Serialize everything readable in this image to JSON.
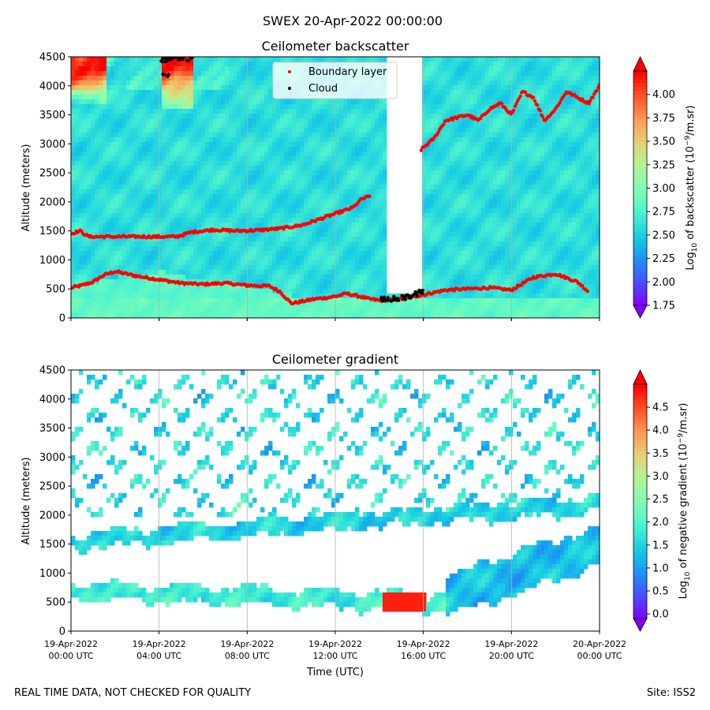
{
  "suptitle": "SWEX 20-Apr-2022 00:00:00",
  "footer_left": "REAL TIME DATA, NOT CHECKED FOR QUALITY",
  "footer_right": "Site: ISS2",
  "xlabel": "Time (UTC)",
  "time_ticks": [
    {
      "line1": "19-Apr-2022",
      "line2": "00:00 UTC",
      "hour": 0
    },
    {
      "line1": "19-Apr-2022",
      "line2": "04:00 UTC",
      "hour": 4
    },
    {
      "line1": "19-Apr-2022",
      "line2": "08:00 UTC",
      "hour": 8
    },
    {
      "line1": "19-Apr-2022",
      "line2": "12:00 UTC",
      "hour": 12
    },
    {
      "line1": "19-Apr-2022",
      "line2": "16:00 UTC",
      "hour": 16
    },
    {
      "line1": "19-Apr-2022",
      "line2": "20:00 UTC",
      "hour": 20
    },
    {
      "line1": "20-Apr-2022",
      "line2": "00:00 UTC",
      "hour": 24
    }
  ],
  "colors": {
    "boundary_layer": "#ff0000",
    "cloud": "#000000",
    "colormap": [
      "#7f00ff",
      "#4b4efc",
      "#1996f3",
      "#19cfe2",
      "#4df3ce",
      "#7ffeb3",
      "#b2f396",
      "#e6cf74",
      "#ff964f",
      "#ff4e27",
      "#ff0000"
    ]
  },
  "chart_data": [
    {
      "type": "heatmap",
      "title": "Ceilometer backscatter",
      "xlabel": "",
      "ylabel": "Altitude (meters)",
      "xlim_hours": [
        0,
        24
      ],
      "ylim": [
        0,
        4500
      ],
      "yticks": [
        0,
        500,
        1000,
        1500,
        2000,
        2500,
        3000,
        3500,
        4000,
        4500
      ],
      "colorbar": {
        "label": "Log10 of backscatter (10^-9/m.sr)",
        "label_prefix": "Log",
        "label_sub": "10",
        "label_mid": " of backscatter (10",
        "label_sup": "−9",
        "label_suffix": "/m.sr)",
        "range": [
          1.75,
          4.25
        ],
        "ticks": [
          "1.75",
          "2.00",
          "2.25",
          "2.50",
          "2.75",
          "3.00",
          "3.25",
          "3.50",
          "3.75",
          "4.00"
        ]
      },
      "legend": {
        "placement": "top-center",
        "entries": [
          "Boundary layer",
          "Cloud"
        ]
      },
      "background_level": 2.6,
      "near_surface_level": 2.85,
      "aerosol_layer": {
        "hours": [
          0,
          13
        ],
        "altitudes": [
          520,
          700,
          800,
          620,
          560,
          380,
          300,
          350
        ],
        "level": 2.8
      },
      "high_signal_periods": [
        {
          "hours": [
            0,
            1.5
          ],
          "from_alt": 3700,
          "level": 4.1
        },
        {
          "hours": [
            4,
            5.5
          ],
          "from_alt": 3600,
          "level": 4.1
        }
      ],
      "white_cloud_column": {
        "hours": [
          14.2,
          15.9
        ],
        "from_alt": 400,
        "to_alt": 4500
      },
      "boundary_layer_series": [
        {
          "name": "lower",
          "x": [
            0,
            0.5,
            1,
            1.5,
            2,
            2.5,
            3,
            3.5,
            4,
            5,
            6,
            7,
            8,
            9,
            9.5,
            10,
            11,
            12,
            12.5,
            13,
            13.5,
            14,
            15,
            16,
            17,
            18,
            19,
            20,
            21,
            22,
            23,
            23.5
          ],
          "y": [
            520,
            560,
            620,
            740,
            800,
            760,
            720,
            690,
            660,
            600,
            580,
            600,
            560,
            550,
            450,
            250,
            320,
            370,
            420,
            380,
            330,
            300,
            320,
            400,
            480,
            500,
            520,
            480,
            700,
            760,
            620,
            450
          ]
        },
        {
          "name": "mid",
          "x": [
            0,
            0.4,
            0.8,
            4.8,
            5.5,
            6.5,
            7.5,
            8.5,
            9.5,
            10.5,
            12.8,
            13.2,
            13.6
          ],
          "y": [
            1450,
            1500,
            1400,
            1400,
            1480,
            1520,
            1500,
            1510,
            1540,
            1600,
            1900,
            2050,
            2100
          ]
        },
        {
          "name": "upper",
          "x": [
            15.9,
            16.5,
            17,
            17.5,
            18,
            18.5,
            19,
            19.5,
            20,
            20.5,
            21,
            21.5,
            22,
            22.5,
            23,
            23.5,
            24
          ],
          "y": [
            2900,
            3100,
            3400,
            3450,
            3500,
            3400,
            3600,
            3700,
            3500,
            3900,
            3800,
            3400,
            3600,
            3900,
            3800,
            3700,
            4000
          ]
        }
      ],
      "cloud_series": {
        "x": [
          14.2,
          14.5,
          14.8,
          15.1,
          15.4,
          15.7,
          15.9,
          4.2,
          4.5,
          4.8,
          5.1,
          5.4,
          4.3
        ],
        "y": [
          320,
          310,
          330,
          350,
          380,
          420,
          450,
          4450,
          4480,
          4460,
          4480,
          4470,
          4200
        ]
      }
    },
    {
      "type": "heatmap",
      "title": "Ceilometer gradient",
      "xlabel": "Time (UTC)",
      "ylabel": "Altitude (meters)",
      "xlim_hours": [
        0,
        24
      ],
      "ylim": [
        0,
        4500
      ],
      "yticks": [
        0,
        500,
        1000,
        1500,
        2000,
        2500,
        3000,
        3500,
        4000,
        4500
      ],
      "colorbar": {
        "label": "Log10 of negative gradient (10^-9/m.sr)",
        "label_prefix": "Log",
        "label_sub": "10",
        "label_mid": " of negative gradient (10",
        "label_sup": "−9",
        "label_suffix": "/m.sr)",
        "range": [
          -0.1,
          5.0
        ],
        "ticks": [
          "0.0",
          "0.5",
          "1.0",
          "1.5",
          "2.0",
          "2.5",
          "3.0",
          "3.5",
          "4.0",
          "4.5"
        ]
      },
      "bands": [
        {
          "hours": [
            0,
            24
          ],
          "alt_start": 1550,
          "alt_end": 2200,
          "thickness": 260,
          "level": 1.5
        },
        {
          "hours": [
            0,
            17
          ],
          "alt_start": 700,
          "alt_end": 500,
          "thickness": 280,
          "level": 1.8
        },
        {
          "hours": [
            17,
            24
          ],
          "alt_start": 600,
          "alt_end": 1500,
          "thickness": 700,
          "level": 1.3
        }
      ],
      "hot_spot": {
        "hours": [
          14,
          16
        ],
        "alt": [
          300,
          650
        ],
        "level": 4.8
      },
      "sparse_patch_level": 1.6
    }
  ]
}
